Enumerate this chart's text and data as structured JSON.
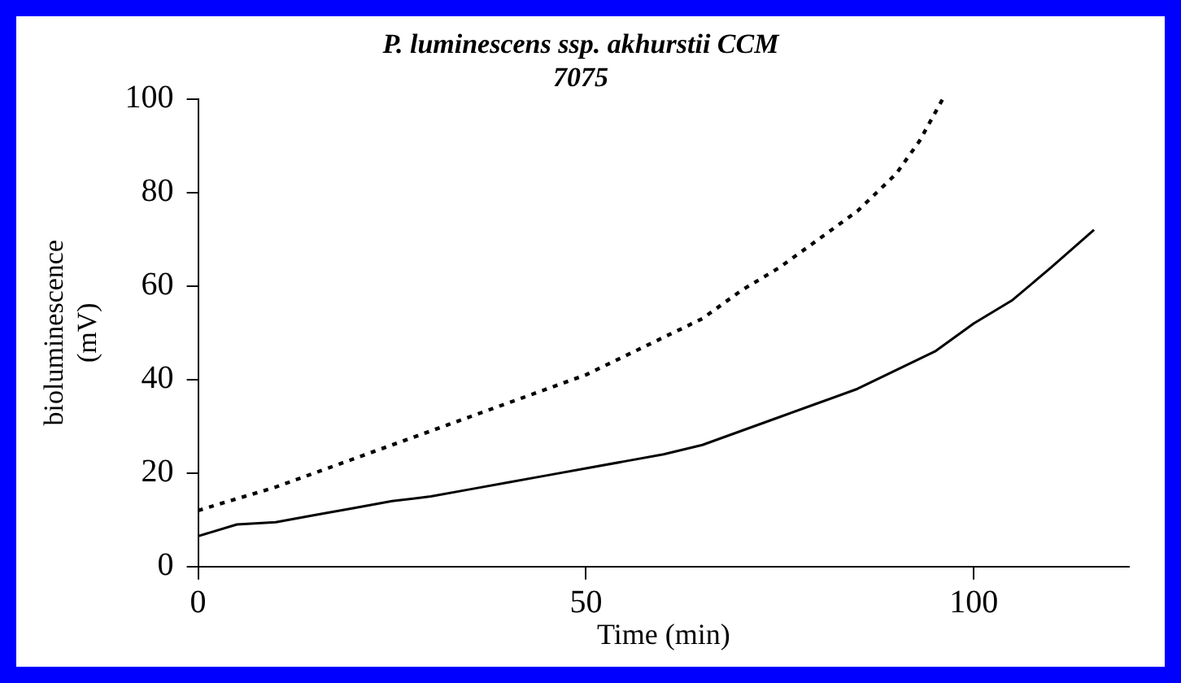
{
  "chart_data": {
    "type": "line",
    "title": "P. luminescens ssp. akhurstii CCM 7075",
    "xlabel": "Time (min)",
    "ylabel": "bioluminescence (mV)",
    "xlim": [
      0,
      120
    ],
    "xticks": [
      0,
      50,
      100
    ],
    "ylim": [
      0,
      100
    ],
    "yticks": [
      0,
      20,
      40,
      60,
      80,
      100
    ],
    "grid": false,
    "legend": false,
    "marker": "none",
    "series": [
      {
        "color": "#000000",
        "line_style": "dotted",
        "x": [
          0,
          5,
          10,
          15,
          20,
          25,
          30,
          35,
          40,
          45,
          50,
          55,
          60,
          65,
          70,
          75,
          80,
          85,
          90,
          93,
          96
        ],
        "values": [
          12,
          14.5,
          17,
          20,
          23,
          26,
          29,
          32,
          35,
          38,
          41,
          45,
          49,
          53,
          59,
          64,
          70,
          76,
          84,
          91,
          100
        ]
      },
      {
        "color": "#000000",
        "line_style": "solid",
        "x": [
          0,
          5,
          10,
          15,
          20,
          25,
          30,
          35,
          40,
          45,
          50,
          55,
          60,
          65,
          70,
          75,
          80,
          85,
          90,
          95,
          100,
          105,
          110,
          115.5
        ],
        "values": [
          6.5,
          9,
          9.5,
          11,
          12.5,
          14,
          15,
          16.5,
          18,
          19.5,
          21,
          22.5,
          24,
          26,
          29,
          32,
          35,
          38,
          42,
          46,
          52,
          57,
          64,
          72
        ]
      }
    ]
  }
}
